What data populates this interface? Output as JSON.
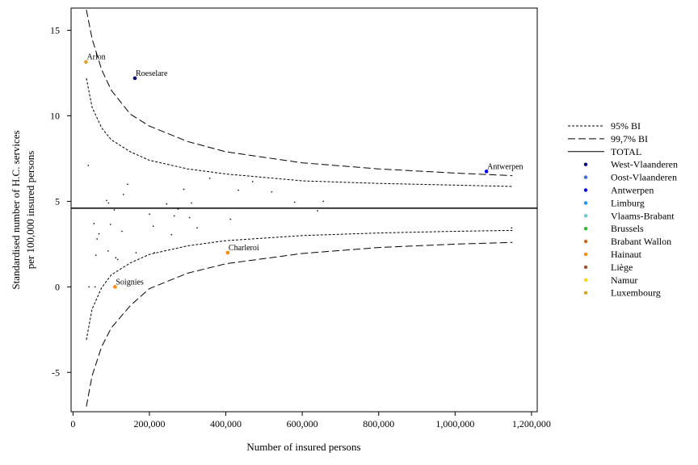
{
  "chart_data": {
    "type": "scatter",
    "xlabel": "Number of insured persons",
    "ylabel_lines": [
      "Standardised number of H.C. services",
      "per 100,000 insured persons"
    ],
    "xlim": [
      -5000,
      1215000
    ],
    "ylim": [
      -7.3,
      16.3
    ],
    "x_ticks": [
      0,
      200000,
      400000,
      600000,
      800000,
      1000000,
      1200000
    ],
    "x_tick_labels": [
      "0",
      "200,000",
      "400,000",
      "600,000",
      "800,000",
      "1,000,000",
      "1,200,000"
    ],
    "y_ticks": [
      -5,
      0,
      5,
      10,
      15
    ],
    "y_tick_labels": [
      "-5",
      "0",
      "5",
      "10",
      "15"
    ],
    "grid": false,
    "legend_position": "right",
    "total": 4.6,
    "lines": [
      {
        "name": "95% BI",
        "style": "dotted",
        "x_range": [
          35000,
          1150000
        ],
        "upper": {
          "x": [
            35000,
            50000,
            75000,
            100000,
            150000,
            200000,
            300000,
            400000,
            600000,
            800000,
            1000000,
            1150000
          ],
          "y": [
            12.2,
            10.5,
            9.3,
            8.6,
            7.9,
            7.4,
            6.9,
            6.6,
            6.2,
            6.05,
            5.95,
            5.87
          ]
        },
        "lower": {
          "x": [
            35000,
            50000,
            75000,
            100000,
            150000,
            200000,
            300000,
            400000,
            600000,
            800000,
            1000000,
            1150000
          ],
          "y": [
            -3.1,
            -1.3,
            -0.05,
            0.7,
            1.4,
            1.9,
            2.4,
            2.7,
            3.0,
            3.15,
            3.25,
            3.3
          ]
        }
      },
      {
        "name": "99,7% BI",
        "style": "dashed",
        "x_range": [
          35000,
          1150000
        ],
        "upper": {
          "x": [
            35000,
            50000,
            75000,
            100000,
            150000,
            200000,
            300000,
            400000,
            600000,
            800000,
            1000000,
            1150000
          ],
          "y": [
            16.2,
            14.5,
            12.7,
            11.5,
            10.1,
            9.4,
            8.5,
            7.9,
            7.25,
            6.9,
            6.65,
            6.5
          ]
        },
        "lower": {
          "x": [
            35000,
            50000,
            75000,
            100000,
            150000,
            200000,
            300000,
            400000,
            600000,
            800000,
            1000000,
            1150000
          ],
          "y": [
            -7.0,
            -5.2,
            -3.5,
            -2.4,
            -1.1,
            -0.1,
            0.8,
            1.35,
            1.95,
            2.3,
            2.5,
            2.6
          ]
        }
      }
    ],
    "series": [
      {
        "name": "West-Vlaanderen",
        "color": "#000080",
        "points": [
          {
            "x": 162000,
            "y": 12.2,
            "label": "Roeselare"
          }
        ]
      },
      {
        "name": "Oost-Vlaanderen",
        "color": "#4169e1",
        "points": []
      },
      {
        "name": "Antwerpen",
        "color": "#0000ff",
        "points": [
          {
            "x": 1082000,
            "y": 6.75,
            "label": "Antwerpen"
          }
        ]
      },
      {
        "name": "Limburg",
        "color": "#1e90ff",
        "points": []
      },
      {
        "name": "Vlaams-Brabant",
        "color": "#66cdd9",
        "points": []
      },
      {
        "name": "Brussels",
        "color": "#2eb82e",
        "points": []
      },
      {
        "name": "Brabant Wallon",
        "color": "#d2691e",
        "points": []
      },
      {
        "name": "Hainaut",
        "color": "#ff8c00",
        "points": [
          {
            "x": 405000,
            "y": 2.0,
            "label": "Charleroi"
          },
          {
            "x": 110000,
            "y": 0.0,
            "label": "Soignies"
          }
        ]
      },
      {
        "name": "Liège",
        "color": "#a0522d",
        "points": []
      },
      {
        "name": "Namur",
        "color": "#ffd700",
        "points": []
      },
      {
        "name": "Luxembourg",
        "color": "#daa520",
        "points": [
          {
            "x": 34000,
            "y": 13.15,
            "label": "Arlon"
          }
        ]
      }
    ],
    "unlabeled_points": [
      {
        "x": 40000,
        "y": 7.1
      },
      {
        "x": 42000,
        "y": 0.0
      },
      {
        "x": 58000,
        "y": 0.0
      },
      {
        "x": 55000,
        "y": 3.7
      },
      {
        "x": 60000,
        "y": 1.85
      },
      {
        "x": 63000,
        "y": 2.8
      },
      {
        "x": 68000,
        "y": 3.1
      },
      {
        "x": 88000,
        "y": 5.05
      },
      {
        "x": 93000,
        "y": 4.9
      },
      {
        "x": 92000,
        "y": 2.1
      },
      {
        "x": 98000,
        "y": 3.65
      },
      {
        "x": 108000,
        "y": 4.5
      },
      {
        "x": 112000,
        "y": 1.7
      },
      {
        "x": 117000,
        "y": 1.6
      },
      {
        "x": 128000,
        "y": 3.25
      },
      {
        "x": 132000,
        "y": 5.4
      },
      {
        "x": 143000,
        "y": 6.0
      },
      {
        "x": 165000,
        "y": 2.0
      },
      {
        "x": 200000,
        "y": 4.25
      },
      {
        "x": 210000,
        "y": 3.55
      },
      {
        "x": 213000,
        "y": 2.0
      },
      {
        "x": 245000,
        "y": 4.85
      },
      {
        "x": 258000,
        "y": 3.05
      },
      {
        "x": 265000,
        "y": 4.15
      },
      {
        "x": 275000,
        "y": 4.55
      },
      {
        "x": 290000,
        "y": 5.7
      },
      {
        "x": 305000,
        "y": 4.05
      },
      {
        "x": 310000,
        "y": 4.9
      },
      {
        "x": 325000,
        "y": 3.45
      },
      {
        "x": 358000,
        "y": 6.35
      },
      {
        "x": 412000,
        "y": 3.95
      },
      {
        "x": 433000,
        "y": 5.65
      },
      {
        "x": 470000,
        "y": 6.15
      },
      {
        "x": 520000,
        "y": 5.55
      },
      {
        "x": 580000,
        "y": 4.95
      },
      {
        "x": 640000,
        "y": 4.45
      },
      {
        "x": 655000,
        "y": 5.0
      },
      {
        "x": 1148000,
        "y": 3.45
      }
    ],
    "legend": [
      {
        "label": "95% BI",
        "style": "dotted"
      },
      {
        "label": "99,7% BI",
        "style": "dashed"
      },
      {
        "label": "TOTAL",
        "style": "solid"
      },
      {
        "label": "West-Vlaanderen",
        "color": "#000080"
      },
      {
        "label": "Oost-Vlaanderen",
        "color": "#4169e1"
      },
      {
        "label": "Antwerpen",
        "color": "#0000ff"
      },
      {
        "label": "Limburg",
        "color": "#1e90ff"
      },
      {
        "label": "Vlaams-Brabant",
        "color": "#66cdd9"
      },
      {
        "label": "Brussels",
        "color": "#2eb82e"
      },
      {
        "label": "Brabant Wallon",
        "color": "#d2691e"
      },
      {
        "label": "Hainaut",
        "color": "#ff8c00"
      },
      {
        "label": "Liège",
        "color": "#a0522d"
      },
      {
        "label": "Namur",
        "color": "#ffd700"
      },
      {
        "label": "Luxembourg",
        "color": "#daa520"
      }
    ]
  }
}
